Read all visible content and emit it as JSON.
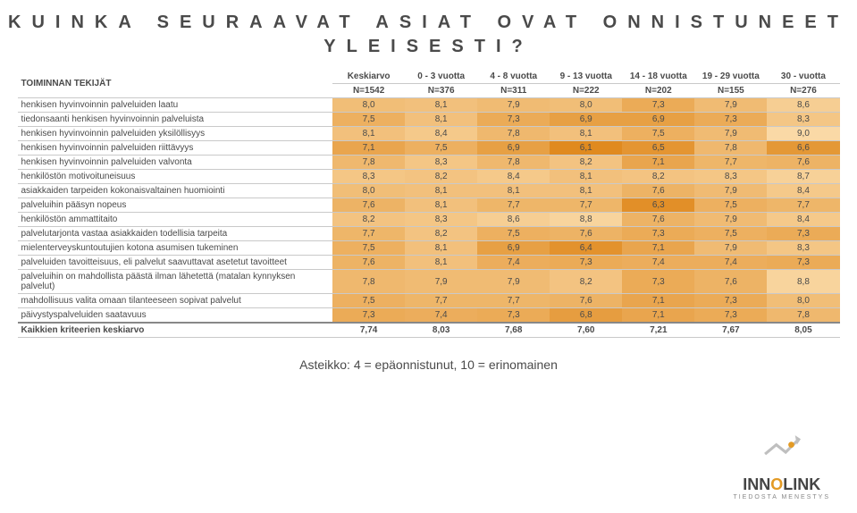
{
  "title_line1": "KUINKA SEURAAVAT ASIAT OVAT ONNISTUNEET",
  "title_line2": "YLEISESTI?",
  "columns": [
    {
      "head": "TOIMINNAN TEKIJÄT"
    },
    {
      "head": "Keskiarvo",
      "sub": "N=1542"
    },
    {
      "head": "0 - 3 vuotta",
      "sub": "N=376"
    },
    {
      "head": "4 - 8 vuotta",
      "sub": "N=311"
    },
    {
      "head": "9 - 13 vuotta",
      "sub": "N=222"
    },
    {
      "head": "14 - 18 vuotta",
      "sub": "N=202"
    },
    {
      "head": "19 - 29 vuotta",
      "sub": "N=155"
    },
    {
      "head": "30 - vuotta",
      "sub": "N=276"
    }
  ],
  "rows": [
    {
      "label": "henkisen hyvinvoinnin palveluiden laatu",
      "v": [
        "8,0",
        "8,1",
        "7,9",
        "8,0",
        "7,3",
        "7,9",
        "8,6"
      ]
    },
    {
      "label": "tiedonsaanti henkisen hyvinvoinnin palveluista",
      "v": [
        "7,5",
        "8,1",
        "7,3",
        "6,9",
        "6,9",
        "7,3",
        "8,3"
      ]
    },
    {
      "label": "henkisen hyvinvoinnin palveluiden yksilöllisyys",
      "v": [
        "8,1",
        "8,4",
        "7,8",
        "8,1",
        "7,5",
        "7,9",
        "9,0"
      ]
    },
    {
      "label": "henkisen hyvinvoinnin palveluiden riittävyys",
      "v": [
        "7,1",
        "7,5",
        "6,9",
        "6,1",
        "6,5",
        "7,8",
        "6,6"
      ]
    },
    {
      "label": "henkisen hyvinvoinnin palveluiden valvonta",
      "v": [
        "7,8",
        "8,3",
        "7,8",
        "8,2",
        "7,1",
        "7,7",
        "7,6"
      ]
    },
    {
      "label": "henkilöstön motivoituneisuus",
      "v": [
        "8,3",
        "8,2",
        "8,4",
        "8,1",
        "8,2",
        "8,3",
        "8,7"
      ]
    },
    {
      "label": "asiakkaiden tarpeiden kokonaisvaltainen huomiointi",
      "v": [
        "8,0",
        "8,1",
        "8,1",
        "8,1",
        "7,6",
        "7,9",
        "8,4"
      ]
    },
    {
      "label": "palveluihin pääsyn nopeus",
      "v": [
        "7,6",
        "8,1",
        "7,7",
        "7,7",
        "6,3",
        "7,5",
        "7,7"
      ]
    },
    {
      "label": "henkilöstön ammattitaito",
      "v": [
        "8,2",
        "8,3",
        "8,6",
        "8,8",
        "7,6",
        "7,9",
        "8,4"
      ]
    },
    {
      "label": "palvelutarjonta vastaa asiakkaiden todellisia tarpeita",
      "v": [
        "7,7",
        "8,2",
        "7,5",
        "7,6",
        "7,3",
        "7,5",
        "7,3"
      ]
    },
    {
      "label": "mielenterveyskuntoutujien kotona asumisen tukeminen",
      "v": [
        "7,5",
        "8,1",
        "6,9",
        "6,4",
        "7,1",
        "7,9",
        "8,3"
      ]
    },
    {
      "label": "palveluiden tavoitteisuus, eli palvelut saavuttavat asetetut tavoitteet",
      "v": [
        "7,6",
        "8,1",
        "7,4",
        "7,3",
        "7,4",
        "7,4",
        "7,3"
      ]
    },
    {
      "label": "palveluihin on mahdollista päästä ilman lähetettä (matalan kynnyksen palvelut)",
      "v": [
        "7,8",
        "7,9",
        "7,9",
        "8,2",
        "7,3",
        "7,6",
        "8,8"
      ]
    },
    {
      "label": "mahdollisuus valita omaan tilanteeseen sopivat palvelut",
      "v": [
        "7,5",
        "7,7",
        "7,7",
        "7,6",
        "7,1",
        "7,3",
        "8,0"
      ]
    },
    {
      "label": "päivystyspalveluiden saatavuus",
      "v": [
        "7,3",
        "7,4",
        "7,3",
        "6,8",
        "7,1",
        "7,3",
        "7,8"
      ]
    }
  ],
  "summary": {
    "label": "Kaikkien kriteerien keskiarvo",
    "v": [
      "7,74",
      "8,03",
      "7,68",
      "7,60",
      "7,21",
      "7,67",
      "8,05"
    ]
  },
  "scale_note": "Asteikko: 4 = epäonnistunut, 10 = erinomainen",
  "brand": {
    "name_pre": "INN",
    "name_o": "O",
    "name_post": "LINK",
    "tag": "TIEDOSTA MENESTYS"
  },
  "style": {
    "bg": "#f7ae49",
    "bg_dark": "#e08a1f",
    "summary_bg": "#ffffff",
    "scale_colors": {
      "low": "#e08a1f",
      "high": "#fad9a6"
    }
  }
}
